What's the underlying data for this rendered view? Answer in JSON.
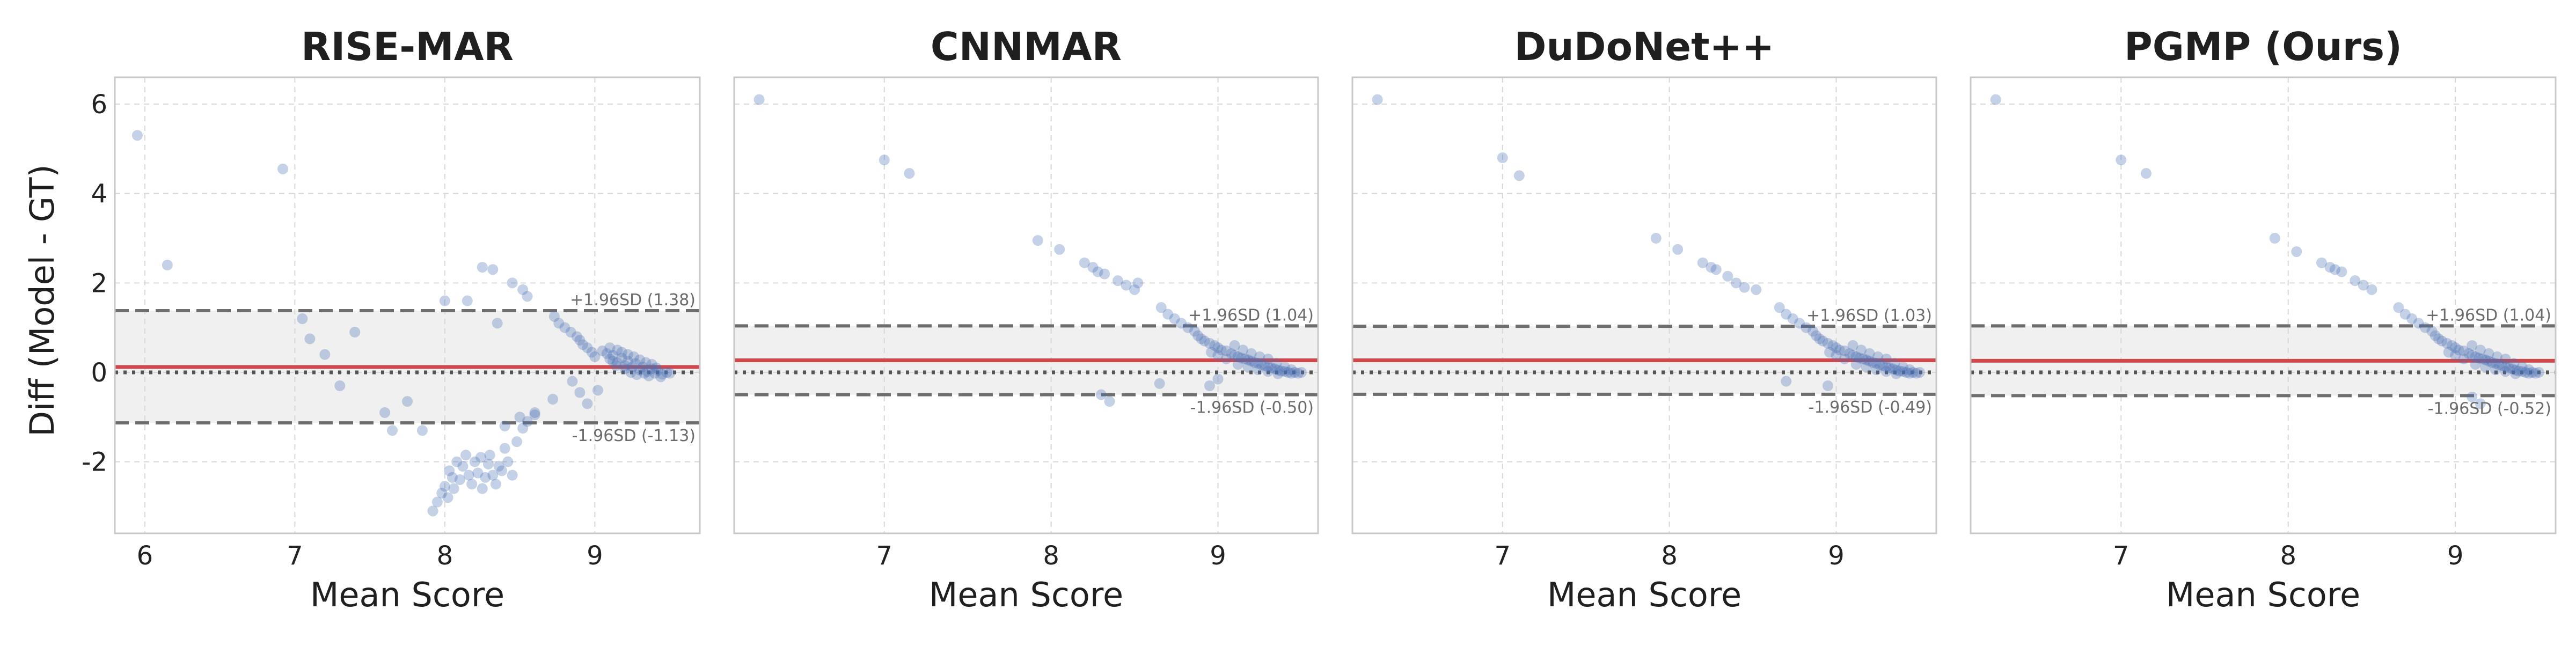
{
  "figure": {
    "y_label": "Diff (Model - GT)"
  },
  "colors": {
    "points": "#4a6fb5",
    "mean_line": "#d1484c",
    "limit_lines": "#6e6e6e",
    "zero_line": "#555555",
    "band_fill": "#f0f0f0",
    "grid": "#d8d8d8",
    "frame": "#c8c8c8"
  },
  "chart_data": [
    {
      "type": "scatter",
      "title": "RISE-MAR",
      "xlabel": "Mean Score",
      "ylabel": "Diff (Model - GT)",
      "xlim": [
        5.8,
        9.7
      ],
      "ylim": [
        -3.6,
        6.6
      ],
      "x_ticks": [
        6,
        7,
        8,
        9
      ],
      "x_tick_labels": [
        "6",
        "7",
        "8",
        "9"
      ],
      "y_ticks": [
        -2,
        0,
        2,
        4,
        6
      ],
      "y_tick_labels": [
        "-2",
        "0",
        "2",
        "4",
        "6"
      ],
      "grid": true,
      "mean_diff": 0.12,
      "upper_loa": 1.38,
      "lower_loa": -1.13,
      "upper_label": "+1.96SD (1.38)",
      "lower_label": "-1.96SD (-1.13)",
      "points": [
        [
          5.95,
          5.3
        ],
        [
          6.15,
          2.4
        ],
        [
          6.92,
          4.55
        ],
        [
          7.05,
          1.2
        ],
        [
          7.1,
          0.75
        ],
        [
          7.2,
          0.4
        ],
        [
          7.3,
          -0.3
        ],
        [
          7.4,
          0.9
        ],
        [
          7.6,
          -0.9
        ],
        [
          7.65,
          -1.3
        ],
        [
          7.75,
          -0.65
        ],
        [
          7.85,
          -1.3
        ],
        [
          8.0,
          1.6
        ],
        [
          8.15,
          1.6
        ],
        [
          8.25,
          2.35
        ],
        [
          8.32,
          2.3
        ],
        [
          8.45,
          2.0
        ],
        [
          8.52,
          1.85
        ],
        [
          8.55,
          1.7
        ],
        [
          8.35,
          1.1
        ],
        [
          8.4,
          -1.2
        ],
        [
          8.5,
          -1.0
        ],
        [
          8.6,
          -0.9
        ],
        [
          8.72,
          -0.6
        ],
        [
          8.85,
          -0.2
        ],
        [
          8.9,
          -0.45
        ],
        [
          8.95,
          -0.7
        ],
        [
          9.02,
          -0.4
        ],
        [
          7.92,
          -3.1
        ],
        [
          7.95,
          -2.9
        ],
        [
          7.98,
          -2.7
        ],
        [
          8.0,
          -2.55
        ],
        [
          8.02,
          -2.8
        ],
        [
          8.03,
          -2.2
        ],
        [
          8.05,
          -2.35
        ],
        [
          8.06,
          -2.6
        ],
        [
          8.08,
          -2.0
        ],
        [
          8.1,
          -2.4
        ],
        [
          8.12,
          -2.1
        ],
        [
          8.14,
          -1.85
        ],
        [
          8.16,
          -2.3
        ],
        [
          8.18,
          -2.5
        ],
        [
          8.2,
          -2.0
        ],
        [
          8.22,
          -2.25
        ],
        [
          8.24,
          -1.9
        ],
        [
          8.25,
          -2.6
        ],
        [
          8.27,
          -2.35
        ],
        [
          8.29,
          -2.05
        ],
        [
          8.3,
          -1.85
        ],
        [
          8.32,
          -2.3
        ],
        [
          8.34,
          -2.5
        ],
        [
          8.36,
          -2.1
        ],
        [
          8.38,
          -2.2
        ],
        [
          8.4,
          -1.7
        ],
        [
          8.42,
          -2.0
        ],
        [
          8.45,
          -2.3
        ],
        [
          8.48,
          -1.55
        ],
        [
          8.52,
          -1.25
        ],
        [
          8.55,
          -1.1
        ],
        [
          8.6,
          -0.95
        ],
        [
          8.73,
          1.25
        ],
        [
          8.76,
          1.1
        ],
        [
          8.8,
          1.0
        ],
        [
          8.84,
          0.9
        ],
        [
          8.88,
          0.8
        ],
        [
          8.9,
          0.72
        ],
        [
          8.92,
          0.62
        ],
        [
          8.95,
          0.55
        ],
        [
          8.98,
          0.45
        ],
        [
          9.0,
          0.35
        ],
        [
          9.05,
          0.48
        ],
        [
          9.08,
          0.42
        ],
        [
          9.1,
          0.3
        ],
        [
          9.12,
          0.38
        ],
        [
          9.15,
          0.22
        ],
        [
          9.18,
          0.32
        ],
        [
          9.2,
          0.15
        ],
        [
          9.22,
          0.25
        ],
        [
          9.25,
          0.12
        ],
        [
          9.27,
          0.2
        ],
        [
          9.3,
          0.05
        ],
        [
          9.32,
          0.12
        ],
        [
          9.35,
          0.02
        ],
        [
          9.38,
          0.08
        ],
        [
          9.4,
          -0.02
        ],
        [
          9.42,
          0.04
        ],
        [
          9.45,
          -0.04
        ],
        [
          9.48,
          0.0
        ],
        [
          9.5,
          -0.02
        ],
        [
          9.15,
          0.5
        ],
        [
          9.18,
          0.45
        ],
        [
          9.22,
          0.4
        ],
        [
          9.26,
          0.35
        ],
        [
          9.3,
          0.28
        ],
        [
          9.34,
          0.22
        ],
        [
          9.38,
          0.18
        ],
        [
          9.12,
          0.25
        ],
        [
          9.2,
          0.08
        ],
        [
          9.28,
          -0.05
        ],
        [
          9.36,
          -0.08
        ],
        [
          9.44,
          -0.1
        ],
        [
          9.1,
          0.55
        ],
        [
          9.14,
          0.15
        ],
        [
          9.24,
          0.0
        ],
        [
          9.33,
          -0.02
        ],
        [
          9.41,
          0.1
        ]
      ]
    },
    {
      "type": "scatter",
      "title": "CNNMAR",
      "xlabel": "Mean Score",
      "ylabel": "",
      "xlim": [
        6.1,
        9.6
      ],
      "ylim": [
        -3.6,
        6.6
      ],
      "x_ticks": [
        7,
        8,
        9
      ],
      "x_tick_labels": [
        "7",
        "8",
        "9"
      ],
      "y_ticks": [
        -2,
        0,
        2,
        4,
        6
      ],
      "y_tick_labels": [],
      "grid": true,
      "mean_diff": 0.27,
      "upper_loa": 1.04,
      "lower_loa": -0.5,
      "upper_label": "+1.96SD (1.04)",
      "lower_label": "-1.96SD (-0.50)",
      "points": [
        [
          6.25,
          6.1
        ],
        [
          7.0,
          4.75
        ],
        [
          7.15,
          4.45
        ],
        [
          7.92,
          2.95
        ],
        [
          8.05,
          2.75
        ],
        [
          8.2,
          2.45
        ],
        [
          8.25,
          2.35
        ],
        [
          8.28,
          2.25
        ],
        [
          8.32,
          2.2
        ],
        [
          8.4,
          2.05
        ],
        [
          8.45,
          1.95
        ],
        [
          8.5,
          1.85
        ],
        [
          8.52,
          2.0
        ],
        [
          8.3,
          -0.5
        ],
        [
          8.35,
          -0.65
        ],
        [
          8.65,
          -0.25
        ],
        [
          8.95,
          -0.3
        ],
        [
          9.0,
          -0.15
        ],
        [
          8.66,
          1.45
        ],
        [
          8.7,
          1.3
        ],
        [
          8.74,
          1.2
        ],
        [
          8.78,
          1.1
        ],
        [
          8.82,
          1.0
        ],
        [
          8.86,
          0.92
        ],
        [
          8.88,
          0.82
        ],
        [
          8.9,
          0.75
        ],
        [
          8.92,
          0.7
        ],
        [
          8.95,
          0.65
        ],
        [
          8.98,
          0.6
        ],
        [
          9.0,
          0.55
        ],
        [
          9.02,
          0.5
        ],
        [
          9.05,
          0.48
        ],
        [
          9.08,
          0.42
        ],
        [
          9.1,
          0.38
        ],
        [
          9.12,
          0.35
        ],
        [
          9.14,
          0.32
        ],
        [
          9.16,
          0.3
        ],
        [
          9.18,
          0.28
        ],
        [
          9.2,
          0.25
        ],
        [
          9.22,
          0.22
        ],
        [
          9.24,
          0.2
        ],
        [
          9.26,
          0.17
        ],
        [
          9.28,
          0.15
        ],
        [
          9.3,
          0.12
        ],
        [
          9.32,
          0.1
        ],
        [
          9.34,
          0.08
        ],
        [
          9.36,
          0.05
        ],
        [
          9.38,
          0.03
        ],
        [
          9.4,
          0.02
        ],
        [
          9.42,
          0.0
        ],
        [
          9.44,
          -0.02
        ],
        [
          9.46,
          0.0
        ],
        [
          9.48,
          -0.02
        ],
        [
          9.1,
          0.6
        ],
        [
          9.15,
          0.5
        ],
        [
          9.2,
          0.42
        ],
        [
          9.25,
          0.35
        ],
        [
          9.3,
          0.3
        ],
        [
          9.35,
          0.2
        ],
        [
          9.4,
          0.12
        ],
        [
          9.12,
          0.18
        ],
        [
          9.18,
          0.12
        ],
        [
          9.24,
          0.06
        ],
        [
          9.3,
          0.02
        ],
        [
          9.36,
          -0.03
        ],
        [
          9.05,
          0.3
        ],
        [
          9.0,
          0.38
        ],
        [
          8.96,
          0.45
        ],
        [
          9.44,
          0.06
        ],
        [
          9.5,
          0.0
        ]
      ]
    },
    {
      "type": "scatter",
      "title": "DuDoNet++",
      "xlabel": "Mean Score",
      "ylabel": "",
      "xlim": [
        6.1,
        9.6
      ],
      "ylim": [
        -3.6,
        6.6
      ],
      "x_ticks": [
        7,
        8,
        9
      ],
      "x_tick_labels": [
        "7",
        "8",
        "9"
      ],
      "y_ticks": [
        -2,
        0,
        2,
        4,
        6
      ],
      "y_tick_labels": [],
      "grid": true,
      "mean_diff": 0.27,
      "upper_loa": 1.03,
      "lower_loa": -0.49,
      "upper_label": "+1.96SD (1.03)",
      "lower_label": "-1.96SD (-0.49)",
      "points": [
        [
          6.25,
          6.1
        ],
        [
          7.0,
          4.8
        ],
        [
          7.1,
          4.4
        ],
        [
          7.92,
          3.0
        ],
        [
          8.05,
          2.75
        ],
        [
          8.2,
          2.45
        ],
        [
          8.25,
          2.35
        ],
        [
          8.28,
          2.3
        ],
        [
          8.35,
          2.15
        ],
        [
          8.4,
          2.0
        ],
        [
          8.45,
          1.9
        ],
        [
          8.52,
          1.85
        ],
        [
          8.7,
          -0.2
        ],
        [
          8.95,
          -0.3
        ],
        [
          8.66,
          1.45
        ],
        [
          8.7,
          1.3
        ],
        [
          8.74,
          1.2
        ],
        [
          8.78,
          1.1
        ],
        [
          8.82,
          1.0
        ],
        [
          8.86,
          0.92
        ],
        [
          8.88,
          0.82
        ],
        [
          8.9,
          0.75
        ],
        [
          8.92,
          0.7
        ],
        [
          8.95,
          0.65
        ],
        [
          8.98,
          0.6
        ],
        [
          9.0,
          0.55
        ],
        [
          9.02,
          0.5
        ],
        [
          9.05,
          0.48
        ],
        [
          9.08,
          0.42
        ],
        [
          9.1,
          0.38
        ],
        [
          9.12,
          0.35
        ],
        [
          9.14,
          0.32
        ],
        [
          9.16,
          0.3
        ],
        [
          9.18,
          0.28
        ],
        [
          9.2,
          0.25
        ],
        [
          9.22,
          0.22
        ],
        [
          9.24,
          0.2
        ],
        [
          9.26,
          0.17
        ],
        [
          9.28,
          0.15
        ],
        [
          9.3,
          0.12
        ],
        [
          9.32,
          0.1
        ],
        [
          9.34,
          0.08
        ],
        [
          9.36,
          0.05
        ],
        [
          9.38,
          0.03
        ],
        [
          9.4,
          0.02
        ],
        [
          9.42,
          0.0
        ],
        [
          9.44,
          -0.02
        ],
        [
          9.46,
          0.0
        ],
        [
          9.48,
          -0.02
        ],
        [
          9.1,
          0.6
        ],
        [
          9.15,
          0.5
        ],
        [
          9.2,
          0.42
        ],
        [
          9.25,
          0.35
        ],
        [
          9.3,
          0.3
        ],
        [
          9.35,
          0.2
        ],
        [
          9.4,
          0.12
        ],
        [
          9.12,
          0.18
        ],
        [
          9.18,
          0.12
        ],
        [
          9.24,
          0.06
        ],
        [
          9.3,
          0.02
        ],
        [
          9.36,
          -0.03
        ],
        [
          9.05,
          0.3
        ],
        [
          9.0,
          0.38
        ],
        [
          8.96,
          0.45
        ],
        [
          9.44,
          0.06
        ],
        [
          9.5,
          0.0
        ]
      ]
    },
    {
      "type": "scatter",
      "title": "PGMP (Ours)",
      "xlabel": "Mean Score",
      "ylabel": "",
      "xlim": [
        6.1,
        9.6
      ],
      "ylim": [
        -3.6,
        6.6
      ],
      "x_ticks": [
        7,
        8,
        9
      ],
      "x_tick_labels": [
        "7",
        "8",
        "9"
      ],
      "y_ticks": [
        -2,
        0,
        2,
        4,
        6
      ],
      "y_tick_labels": [],
      "grid": true,
      "mean_diff": 0.26,
      "upper_loa": 1.04,
      "lower_loa": -0.52,
      "upper_label": "+1.96SD (1.04)",
      "lower_label": "-1.96SD (-0.52)",
      "points": [
        [
          6.25,
          6.1
        ],
        [
          7.0,
          4.75
        ],
        [
          7.15,
          4.45
        ],
        [
          7.92,
          3.0
        ],
        [
          8.05,
          2.7
        ],
        [
          8.2,
          2.45
        ],
        [
          8.25,
          2.35
        ],
        [
          8.28,
          2.3
        ],
        [
          8.32,
          2.25
        ],
        [
          8.4,
          2.05
        ],
        [
          8.45,
          1.95
        ],
        [
          8.5,
          1.85
        ],
        [
          9.1,
          -0.55
        ],
        [
          9.15,
          -0.7
        ],
        [
          8.66,
          1.45
        ],
        [
          8.7,
          1.3
        ],
        [
          8.74,
          1.2
        ],
        [
          8.78,
          1.1
        ],
        [
          8.82,
          1.0
        ],
        [
          8.86,
          0.92
        ],
        [
          8.88,
          0.82
        ],
        [
          8.9,
          0.75
        ],
        [
          8.92,
          0.7
        ],
        [
          8.95,
          0.65
        ],
        [
          8.98,
          0.6
        ],
        [
          9.0,
          0.55
        ],
        [
          9.02,
          0.5
        ],
        [
          9.05,
          0.48
        ],
        [
          9.08,
          0.42
        ],
        [
          9.1,
          0.38
        ],
        [
          9.12,
          0.35
        ],
        [
          9.14,
          0.32
        ],
        [
          9.16,
          0.3
        ],
        [
          9.18,
          0.28
        ],
        [
          9.2,
          0.25
        ],
        [
          9.22,
          0.22
        ],
        [
          9.24,
          0.2
        ],
        [
          9.26,
          0.17
        ],
        [
          9.28,
          0.15
        ],
        [
          9.3,
          0.12
        ],
        [
          9.32,
          0.1
        ],
        [
          9.34,
          0.08
        ],
        [
          9.36,
          0.05
        ],
        [
          9.38,
          0.03
        ],
        [
          9.4,
          0.02
        ],
        [
          9.42,
          0.0
        ],
        [
          9.44,
          -0.02
        ],
        [
          9.46,
          0.0
        ],
        [
          9.48,
          -0.02
        ],
        [
          9.1,
          0.6
        ],
        [
          9.15,
          0.5
        ],
        [
          9.2,
          0.42
        ],
        [
          9.25,
          0.35
        ],
        [
          9.3,
          0.3
        ],
        [
          9.35,
          0.2
        ],
        [
          9.4,
          0.12
        ],
        [
          9.12,
          0.18
        ],
        [
          9.18,
          0.12
        ],
        [
          9.24,
          0.06
        ],
        [
          9.3,
          0.02
        ],
        [
          9.36,
          -0.03
        ],
        [
          9.05,
          0.3
        ],
        [
          9.0,
          0.38
        ],
        [
          8.96,
          0.45
        ],
        [
          9.44,
          0.06
        ],
        [
          9.5,
          0.0
        ]
      ]
    }
  ]
}
